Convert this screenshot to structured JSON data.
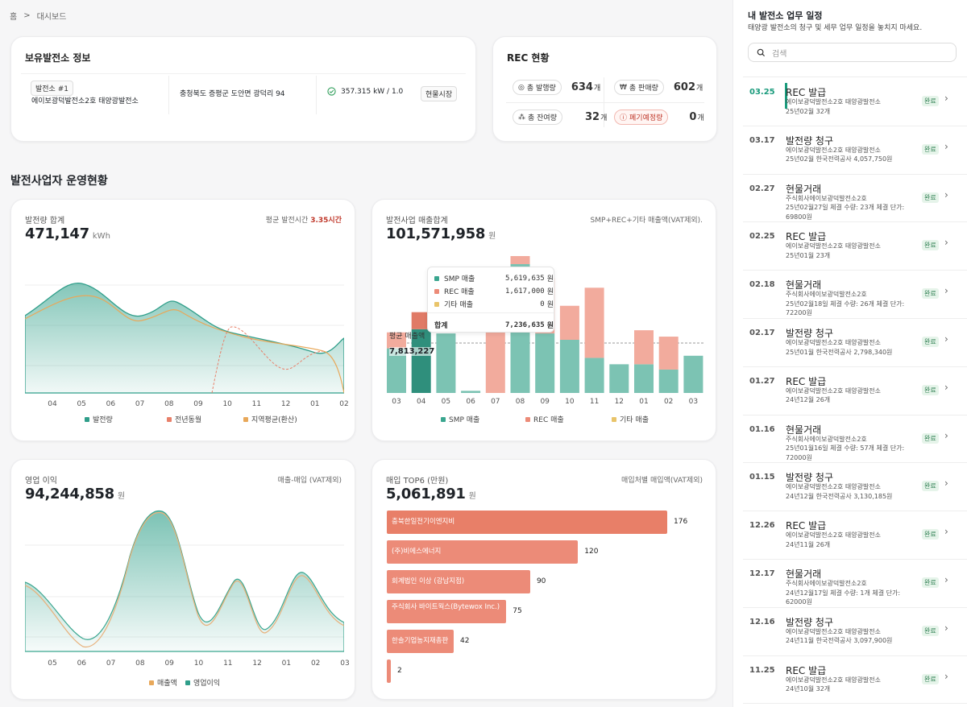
{
  "breadcrumb": {
    "home": "홈",
    "sep": ">",
    "current": "대시보드"
  },
  "plant_info": {
    "title": "보유발전소 정보",
    "tag": "발전소 #1",
    "name": "에이보광덕발전소2호 태양광발전소",
    "address": "충청북도 증평군 도안면 광덕리 94",
    "capacity": "357.315 kW / 1.0",
    "market": "현물시장"
  },
  "rec": {
    "title": "REC 현황",
    "issued_label": "총 발행량",
    "issued": "634",
    "issued_unit": "개",
    "sold_label": "총 판매량",
    "sold": "602",
    "sold_unit": "개",
    "remain_label": "총 잔여량",
    "remain": "32",
    "remain_unit": "개",
    "expire_label": "폐기예정량",
    "expire": "0",
    "expire_unit": "개"
  },
  "section_title": "발전사업자 운영현황",
  "gen": {
    "title": "발전량 합계",
    "value": "471,147",
    "unit": "kWh",
    "right_label": "평균 발전시간",
    "right_value": "3.35시간",
    "months": [
      "04",
      "05",
      "06",
      "07",
      "08",
      "09",
      "10",
      "11",
      "12",
      "01",
      "02"
    ],
    "legend": [
      "발전량",
      "전년동월",
      "지역평균(환산)"
    ],
    "colors": [
      "#2f9e8a",
      "#e8806a",
      "#e8a85a"
    ]
  },
  "sales": {
    "title": "발전사업 매출합계",
    "value": "101,571,958",
    "unit": "원",
    "right_label": "SMP+REC+기타 매출액(VAT제외).",
    "avg_label": "평균 매출액",
    "avg_value": "7,813,227",
    "tooltip": {
      "smp_label": "SMP 매출",
      "smp": "5,619,635",
      "rec_label": "REC 매출",
      "rec": "1,617,000",
      "etc_label": "기타 매출",
      "etc": "0",
      "unit": "원",
      "total_label": "합계",
      "total": "7,236,635"
    },
    "legend": [
      "SMP 매출",
      "REC 매출",
      "기타 매출"
    ],
    "colors": {
      "smp": "#3aa68f",
      "rec": "#ec8b78",
      "etc": "#e9c46a"
    }
  },
  "profit": {
    "title": "영업 이익",
    "value": "94,244,858",
    "unit": "원",
    "right_label": "매출-매입 (VAT제외)",
    "months": [
      "05",
      "06",
      "07",
      "08",
      "09",
      "10",
      "11",
      "12",
      "01",
      "02",
      "03"
    ],
    "legend": [
      "매출액",
      "영업이익"
    ]
  },
  "purchase": {
    "title": "매입 TOP6 (만원)",
    "value": "5,061,891",
    "unit": "원",
    "right_label": "매입처별 매입액(VAT제외)"
  },
  "chart_data": [
    {
      "type": "area",
      "title": "발전량 합계",
      "x": [
        "04",
        "05",
        "06",
        "07",
        "08",
        "09",
        "10",
        "11",
        "12",
        "01",
        "02"
      ],
      "series": [
        {
          "name": "발전량",
          "values": [
            52000,
            64000,
            58000,
            60000,
            52000,
            45000,
            40000,
            36000,
            34000,
            33000,
            42000
          ]
        },
        {
          "name": "전년동월",
          "values": [
            50000,
            61000,
            54000,
            58000,
            48000,
            44000,
            43000,
            33000,
            30000,
            44000,
            0
          ]
        },
        {
          "name": "지역평균(환산)",
          "values": [
            51000,
            62000,
            56000,
            59000,
            50000,
            44000,
            39000,
            35000,
            33000,
            34000,
            36000
          ]
        }
      ]
    },
    {
      "type": "bar",
      "title": "발전사업 매출합계",
      "categories": [
        "03",
        "04",
        "05",
        "06",
        "07",
        "08",
        "09",
        "10",
        "11",
        "12",
        "01",
        "02",
        "03"
      ],
      "series": [
        {
          "name": "SMP 매출",
          "values": [
            4.2,
            6.0,
            5.6,
            0.2,
            0,
            12.5,
            5.6,
            5.0,
            3.3,
            2.7,
            2.7,
            2.2,
            3.5
          ]
        },
        {
          "name": "REC 매출",
          "values": [
            1.5,
            1.6,
            0,
            0,
            6.7,
            1.6,
            5.2,
            3.2,
            6.6,
            0,
            3.2,
            3.1,
            0
          ]
        },
        {
          "name": "기타 매출",
          "values": [
            0,
            0,
            0,
            0,
            0,
            0,
            0,
            0,
            0,
            0,
            0,
            0,
            0
          ]
        }
      ],
      "ylabel": "",
      "avg": 7813227
    },
    {
      "type": "area",
      "title": "영업 이익",
      "x": [
        "05",
        "06",
        "07",
        "08",
        "09",
        "10",
        "11",
        "12",
        "01",
        "02",
        "03"
      ],
      "series": [
        {
          "name": "매출액",
          "values": [
            4,
            -2,
            6,
            14,
            8,
            -3,
            2,
            -4,
            3,
            0,
            -1
          ]
        },
        {
          "name": "영업이익",
          "values": [
            4,
            -1,
            6,
            15,
            9,
            -2,
            2,
            -3,
            4,
            1,
            -1
          ]
        }
      ]
    },
    {
      "type": "bar",
      "title": "매입 TOP6 (만원)",
      "categories": [
        "충북한일전기이엔지비",
        "(주)비에스에너지",
        "회계법인 이상 (강남지점)",
        "주식회사 바이트웍스(Bytewox Inc.)",
        "한솔기업농지재총판",
        ""
      ],
      "values": [
        176,
        120,
        90,
        75,
        42,
        2
      ]
    }
  ],
  "schedule": {
    "title": "내 발전소 업무 일정",
    "subtitle": "태양광 발전소의 청구 및 세무 업무 일정을 놓치지 마세요.",
    "search_placeholder": "검색",
    "items": [
      {
        "date": "03.25",
        "title": "REC 발급",
        "lines": [
          "에이보광덕발전소2호 태양광발전소",
          "25년02월 32개"
        ],
        "badge": "완료"
      },
      {
        "date": "03.17",
        "title": "발전량 청구",
        "lines": [
          "에이보광덕발전소2호 태양광발전소",
          "25년02월 한국전력공사 4,057,750원"
        ],
        "badge": "완료"
      },
      {
        "date": "02.27",
        "title": "현물거래",
        "lines": [
          "주식회사에이보광덕발전소2호",
          "25년02월27일 체결 수량: 23개 체결 단가:",
          "69800원"
        ],
        "badge": "완료"
      },
      {
        "date": "02.25",
        "title": "REC 발급",
        "lines": [
          "에이보광덕발전소2호 태양광발전소",
          "25년01월 23개"
        ],
        "badge": "완료"
      },
      {
        "date": "02.18",
        "title": "현물거래",
        "lines": [
          "주식회사에이보광덕발전소2호",
          "25년02월18일 체결 수량: 26개 체결 단가:",
          "72200원"
        ],
        "badge": "완료"
      },
      {
        "date": "02.17",
        "title": "발전량 청구",
        "lines": [
          "에이보광덕발전소2호 태양광발전소",
          "25년01월 한국전력공사 2,798,340원"
        ],
        "badge": "완료"
      },
      {
        "date": "01.27",
        "title": "REC 발급",
        "lines": [
          "에이보광덕발전소2호 태양광발전소",
          "24년12월 26개"
        ],
        "badge": "완료"
      },
      {
        "date": "01.16",
        "title": "현물거래",
        "lines": [
          "주식회사에이보광덕발전소2호",
          "25년01월16일 체결 수량: 57개 체결 단가:",
          "72000원"
        ],
        "badge": "완료"
      },
      {
        "date": "01.15",
        "title": "발전량 청구",
        "lines": [
          "에이보광덕발전소2호 태양광발전소",
          "24년12월 한국전력공사 3,130,185원"
        ],
        "badge": "완료"
      },
      {
        "date": "12.26",
        "title": "REC 발급",
        "lines": [
          "에이보광덕발전소2호 태양광발전소",
          "24년11월 26개"
        ],
        "badge": "완료"
      },
      {
        "date": "12.17",
        "title": "현물거래",
        "lines": [
          "주식회사에이보광덕발전소2호",
          "24년12월17일 체결 수량: 1개 체결 단가:",
          "62000원"
        ],
        "badge": "완료"
      },
      {
        "date": "12.16",
        "title": "발전량 청구",
        "lines": [
          "에이보광덕발전소2호 태양광발전소",
          "24년11월 한국전력공사 3,097,900원"
        ],
        "badge": "완료"
      },
      {
        "date": "11.25",
        "title": "REC 발급",
        "lines": [
          "에이보광덕발전소2호 태양광발전소",
          "24년10월 32개"
        ],
        "badge": "완료"
      }
    ]
  }
}
